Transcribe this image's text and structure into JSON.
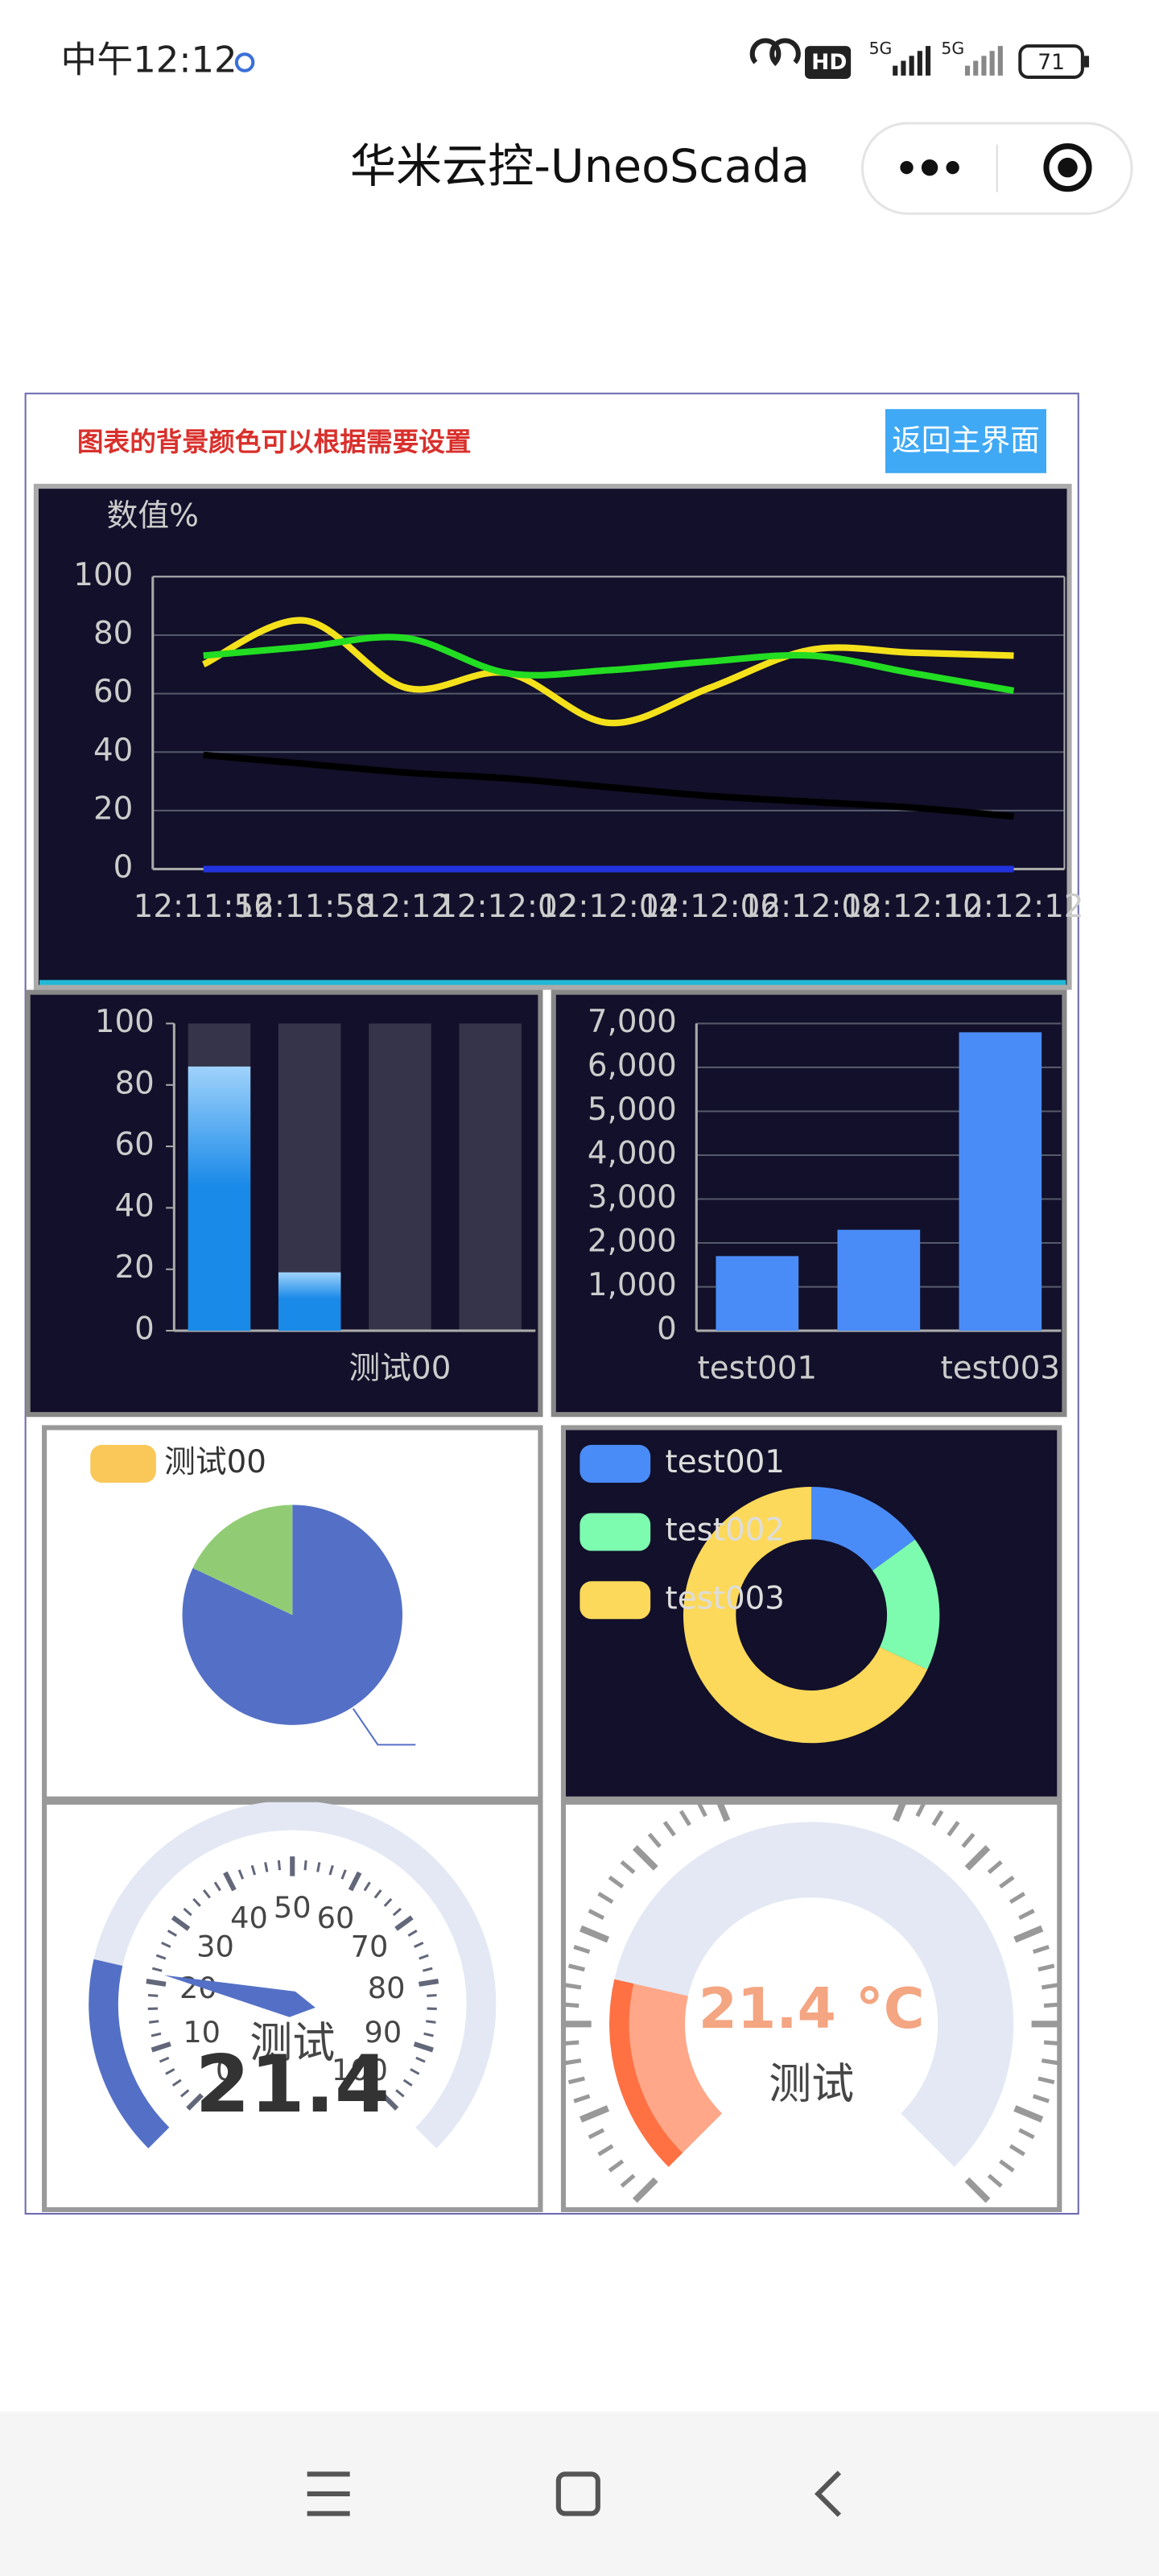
{
  "status_bar": {
    "time": "中午12:12",
    "hd": "HD",
    "network": [
      "5G",
      "5G"
    ],
    "battery": "71"
  },
  "header": {
    "title": "华米云控-UneoScada"
  },
  "panel": {
    "note": "图表的背景颜色可以根据需要设置",
    "button": "返回主界面"
  },
  "chart_data": [
    {
      "type": "line",
      "y_label": "数值%",
      "categories": [
        "12:11:56",
        "12:11:58",
        "12:12",
        "12:12:02",
        "12:12:04",
        "12:12:06",
        "12:12:08",
        "12:12:10",
        "12:12:12"
      ],
      "series": [
        {
          "color": "#f5e11b",
          "values": [
            70,
            85,
            62,
            67,
            50,
            62,
            75,
            74,
            73
          ]
        },
        {
          "color": "#22dd22",
          "values": [
            73,
            76,
            79,
            67,
            68,
            71,
            73,
            67,
            61
          ]
        },
        {
          "color": "#000000",
          "values": [
            39,
            36,
            33,
            31,
            28,
            25,
            23,
            21,
            18
          ]
        },
        {
          "color": "#2233dd",
          "values": [
            0,
            0,
            0,
            0,
            0,
            0,
            0,
            0,
            0
          ]
        }
      ],
      "ylim": [
        0,
        100
      ],
      "yticks": [
        0,
        20,
        40,
        60,
        80,
        100
      ],
      "grid": true
    },
    {
      "type": "bar",
      "categories": [
        null,
        null,
        "测试00",
        null
      ],
      "values": [
        86,
        19,
        0,
        0
      ],
      "color": "#1a8ae8",
      "background_bars": true,
      "ylim": [
        0,
        100
      ],
      "yticks": [
        0,
        20,
        40,
        60,
        80,
        100
      ],
      "grid": false
    },
    {
      "type": "bar",
      "categories": [
        "test001",
        null,
        "test003"
      ],
      "values": [
        1700,
        2300,
        6800
      ],
      "color": "#4a8cf7",
      "ylim": [
        0,
        7000
      ],
      "yticks": [
        0,
        {
          "value": 1000,
          "label": "1,000"
        },
        {
          "value": 2000,
          "label": "2,000"
        },
        {
          "value": 3000,
          "label": "3,000"
        },
        {
          "value": 4000,
          "label": "4,000"
        },
        {
          "value": 5000,
          "label": "5,000"
        },
        {
          "value": 6000,
          "label": "6,000"
        },
        {
          "value": 7000,
          "label": "7,000"
        }
      ],
      "grid": true
    },
    {
      "type": "pie",
      "categories": [
        "测试00",
        null,
        null
      ],
      "values": [
        0,
        82,
        18
      ],
      "colors": [
        "#fac858",
        "#5470c6",
        "#91cc75"
      ]
    },
    {
      "type": "donut",
      "categories": [
        "test001",
        "test002",
        "test003"
      ],
      "values": [
        15,
        17,
        68
      ],
      "colors": [
        "#4a8cf7",
        "#7dfcb0",
        "#fcd95a"
      ]
    },
    {
      "type": "gauge",
      "name": "测试",
      "values": [
        21.4
      ],
      "pointer": true,
      "color": "#5470c6",
      "ylim": [
        0,
        100
      ],
      "yticks": [
        0,
        10,
        20,
        30,
        40,
        50,
        60,
        70,
        80,
        90,
        100
      ]
    },
    {
      "type": "gauge",
      "name": "测试",
      "values": [
        21.4
      ],
      "value_labels": [
        "21.4 °C"
      ],
      "pointer": false,
      "color": "#ff7043",
      "ylim": [
        0,
        100
      ]
    }
  ]
}
